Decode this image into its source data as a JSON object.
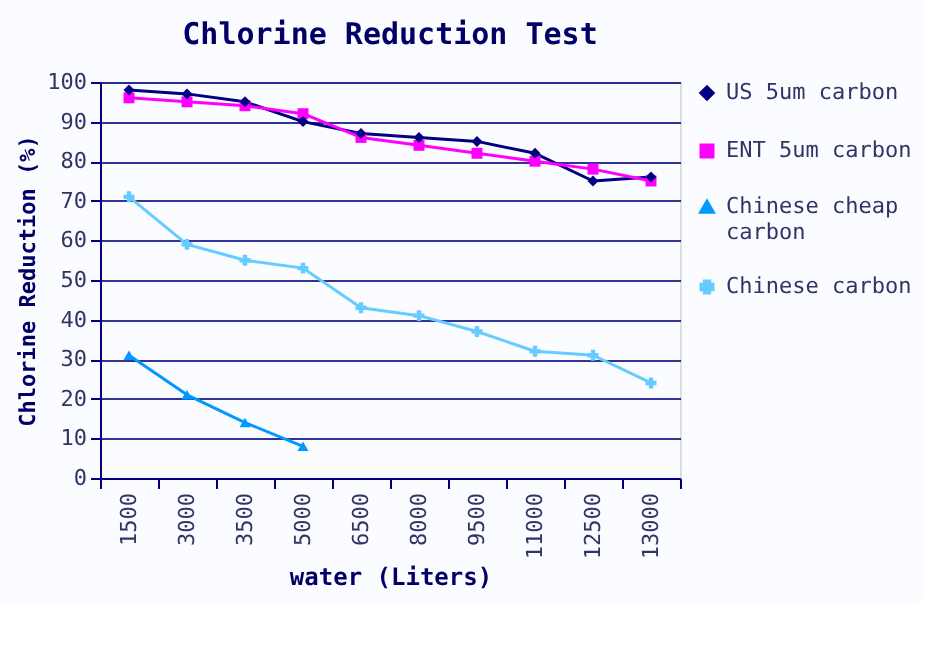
{
  "chart_data": {
    "type": "line",
    "title": "Chlorine Reduction Test",
    "xlabel": "water (Liters)",
    "ylabel": "Chlorine Reduction (%)",
    "categories": [
      "1500",
      "3000",
      "3500",
      "5000",
      "6500",
      "8000",
      "9500",
      "11000",
      "12500",
      "13000"
    ],
    "series": [
      {
        "name": "US 5um carbon",
        "color": "#000080",
        "marker": "diamond",
        "values": [
          98,
          97,
          95,
          90,
          87,
          86,
          85,
          82,
          75,
          76
        ]
      },
      {
        "name": "ENT 5um carbon",
        "color": "#ff00ff",
        "marker": "square",
        "values": [
          96,
          95,
          94,
          92,
          86,
          84,
          82,
          80,
          78,
          75
        ]
      },
      {
        "name": "Chinese cheap carbon",
        "color": "#0099ff",
        "marker": "triangle",
        "values": [
          31,
          21,
          14,
          8,
          null,
          null,
          null,
          null,
          null,
          null
        ]
      },
      {
        "name": "Chinese carbon",
        "color": "#66ccff",
        "marker": "cross",
        "values": [
          71,
          59,
          55,
          53,
          43,
          41,
          37,
          32,
          31,
          24
        ]
      }
    ],
    "ylim": [
      0,
      100
    ],
    "yticks": [
      0,
      10,
      20,
      30,
      40,
      50,
      60,
      70,
      80,
      90,
      100
    ],
    "grid": "y",
    "legend": "right"
  }
}
